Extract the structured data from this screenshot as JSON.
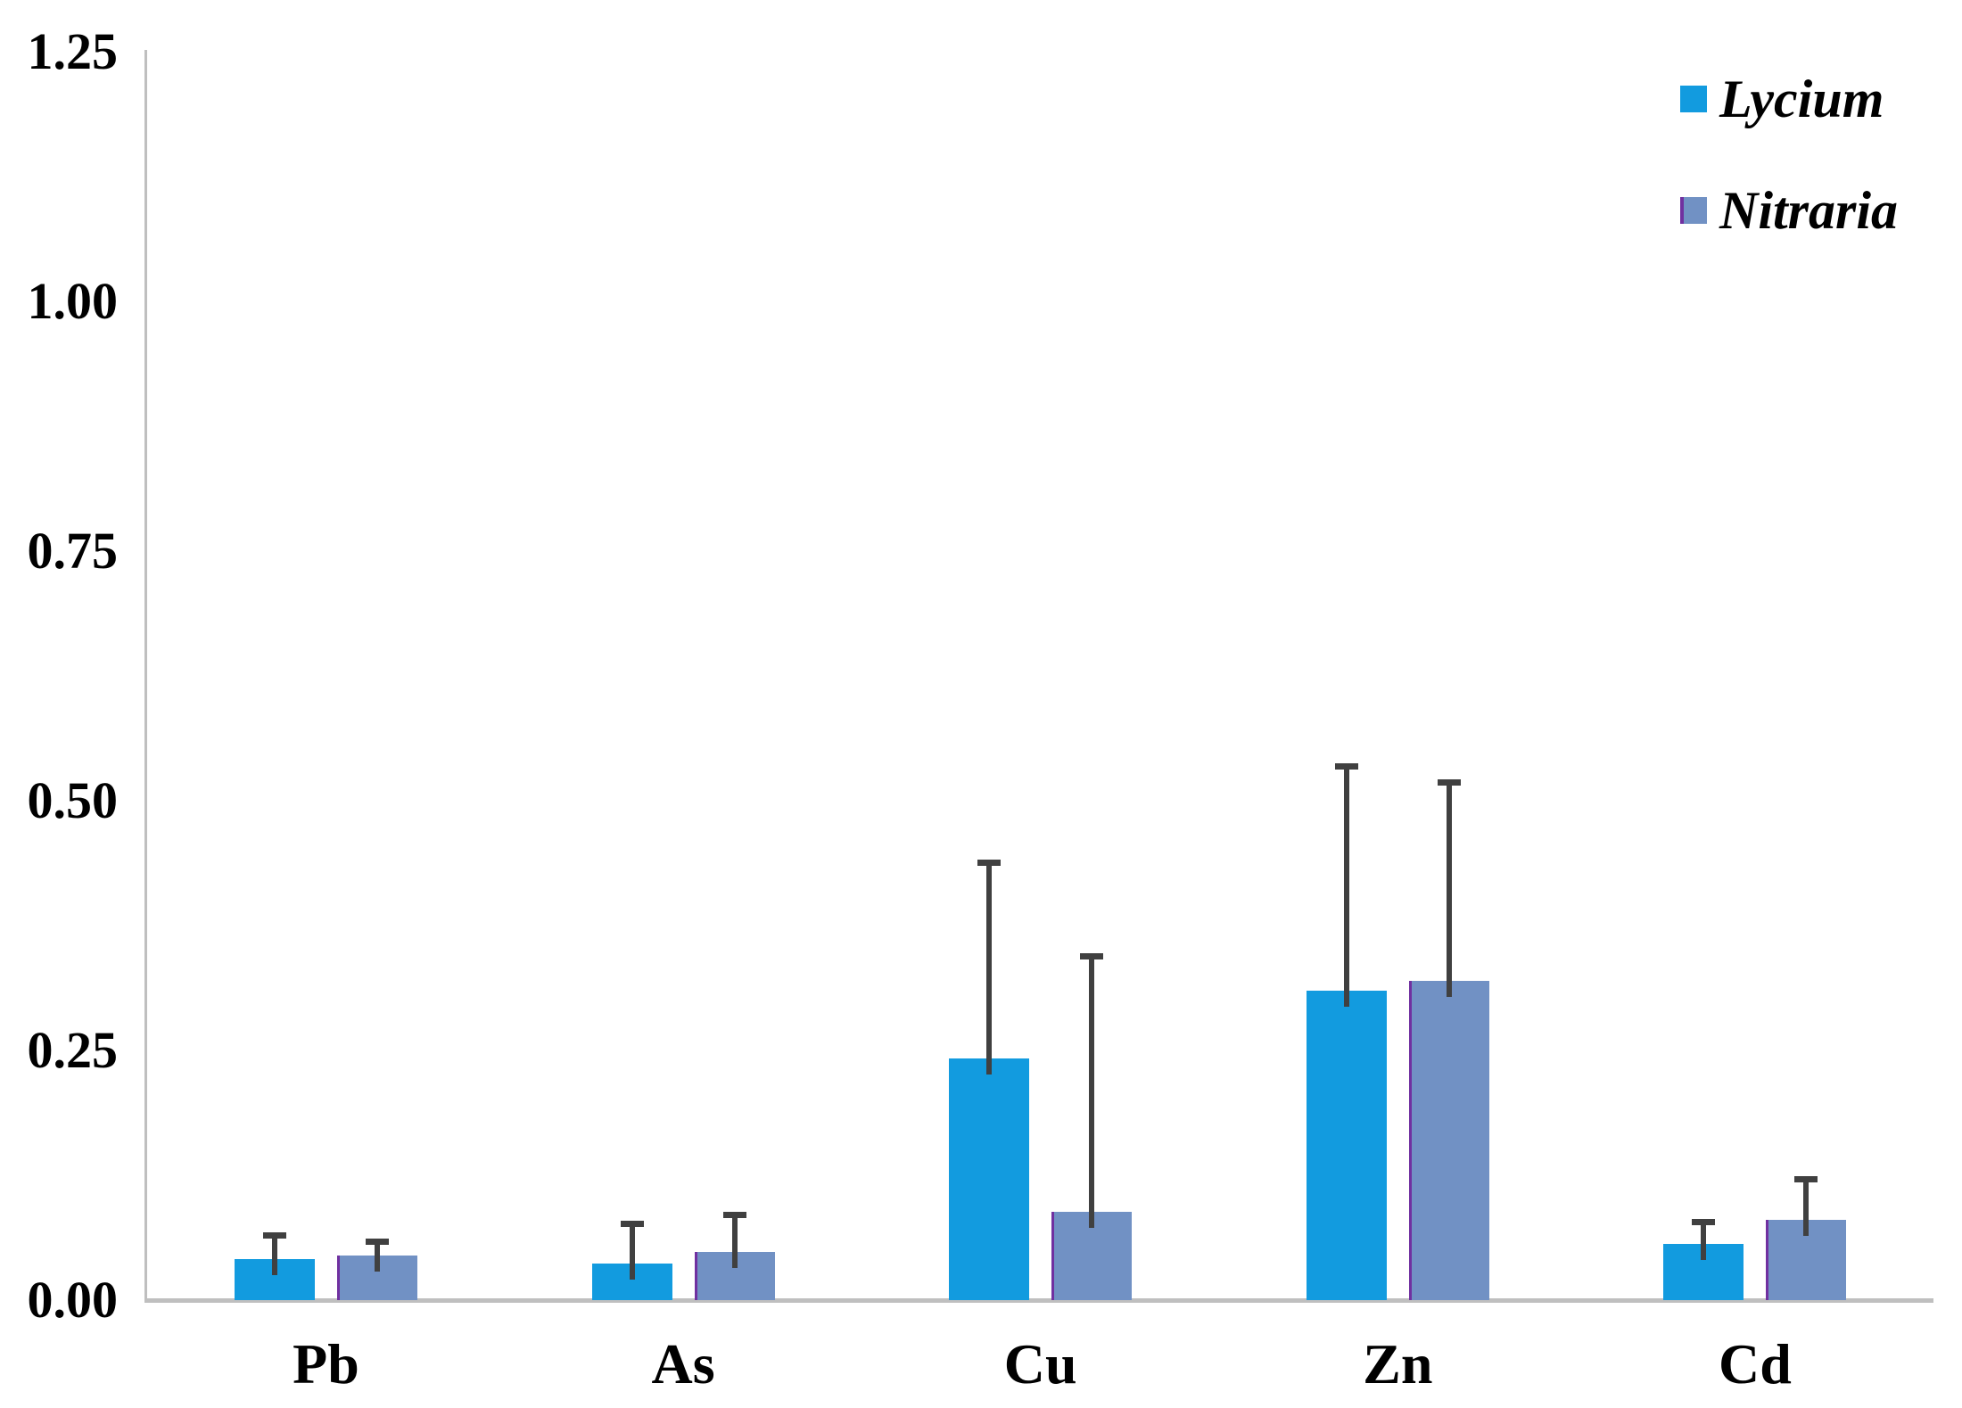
{
  "chart_data": {
    "type": "bar",
    "categories": [
      "Pb",
      "As",
      "Cu",
      "Zn",
      "Cd"
    ],
    "series": [
      {
        "name": "Lycium",
        "color": "#129BDF",
        "values": [
          0.041,
          0.037,
          0.242,
          0.31,
          0.056
        ],
        "errors_plus": [
          0.024,
          0.04,
          0.196,
          0.225,
          0.023
        ]
      },
      {
        "name": "Nitraria",
        "color": "#7191C4",
        "edge_color": "#7030A0",
        "values": [
          0.045,
          0.048,
          0.088,
          0.32,
          0.08
        ],
        "errors_plus": [
          0.014,
          0.038,
          0.257,
          0.199,
          0.041
        ]
      }
    ],
    "ylim": [
      0,
      1.25
    ],
    "yticks": [
      0.0,
      0.25,
      0.5,
      0.75,
      1.0,
      1.25
    ],
    "ytick_labels": [
      "0.00",
      "0.25",
      "0.50",
      "0.75",
      "1.00",
      "1.25"
    ],
    "grid": false,
    "legend_position": "top-right",
    "error_bars": "upper-only",
    "colors": {
      "error_bar": "#404040",
      "axis": "#BFBFBF",
      "text": "#000000",
      "background": "#FFFFFF"
    }
  }
}
